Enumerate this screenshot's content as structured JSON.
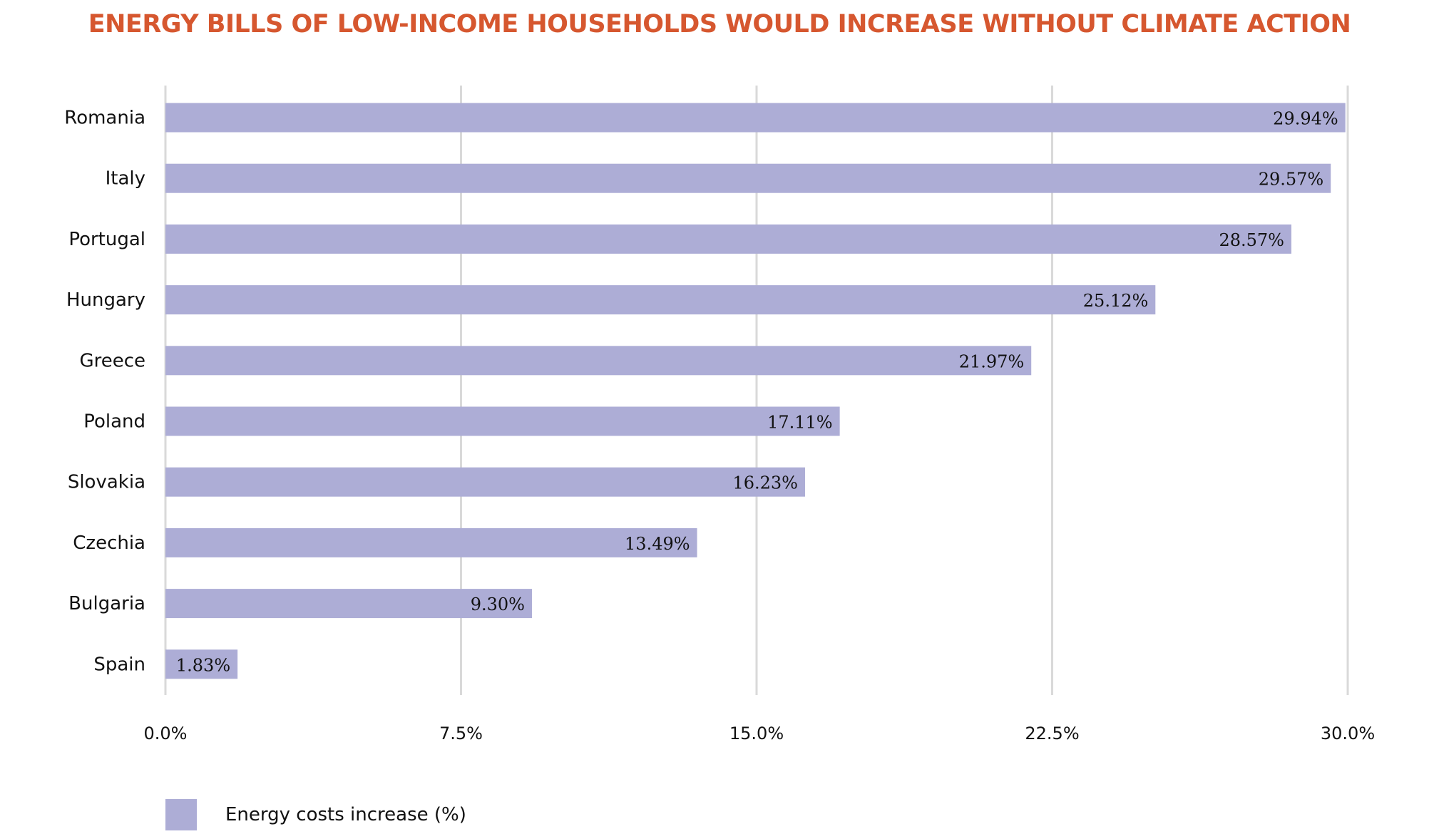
{
  "colors": {
    "title": "#d6572f",
    "bar": "#adadd6",
    "grid": "#d9d9d9",
    "text": "#111111"
  },
  "chart_data": {
    "type": "bar",
    "orientation": "horizontal",
    "title": "ENERGY BILLS OF LOW-INCOME HOUSEHOLDS WOULD INCREASE WITHOUT CLIMATE ACTION",
    "categories": [
      "Romania",
      "Italy",
      "Portugal",
      "Hungary",
      "Greece",
      "Poland",
      "Slovakia",
      "Czechia",
      "Bulgaria",
      "Spain"
    ],
    "series": [
      {
        "name": "Energy costs increase (%)",
        "values": [
          29.94,
          29.57,
          28.57,
          25.12,
          21.97,
          17.11,
          16.23,
          13.49,
          9.3,
          1.83
        ]
      }
    ],
    "data_labels": [
      "29.94%",
      "29.57%",
      "28.57%",
      "25.12%",
      "21.97%",
      "17.11%",
      "16.23%",
      "13.49%",
      "9.30%",
      "1.83%"
    ],
    "x_ticks": [
      0,
      7.5,
      15,
      22.5,
      30
    ],
    "x_tick_labels": [
      "0.0%",
      "7.5%",
      "15.0%",
      "22.5%",
      "30.0%"
    ],
    "xlim": [
      0,
      30
    ],
    "grid": "vertical",
    "legend_position": "bottom-left",
    "xlabel": "",
    "ylabel": ""
  }
}
